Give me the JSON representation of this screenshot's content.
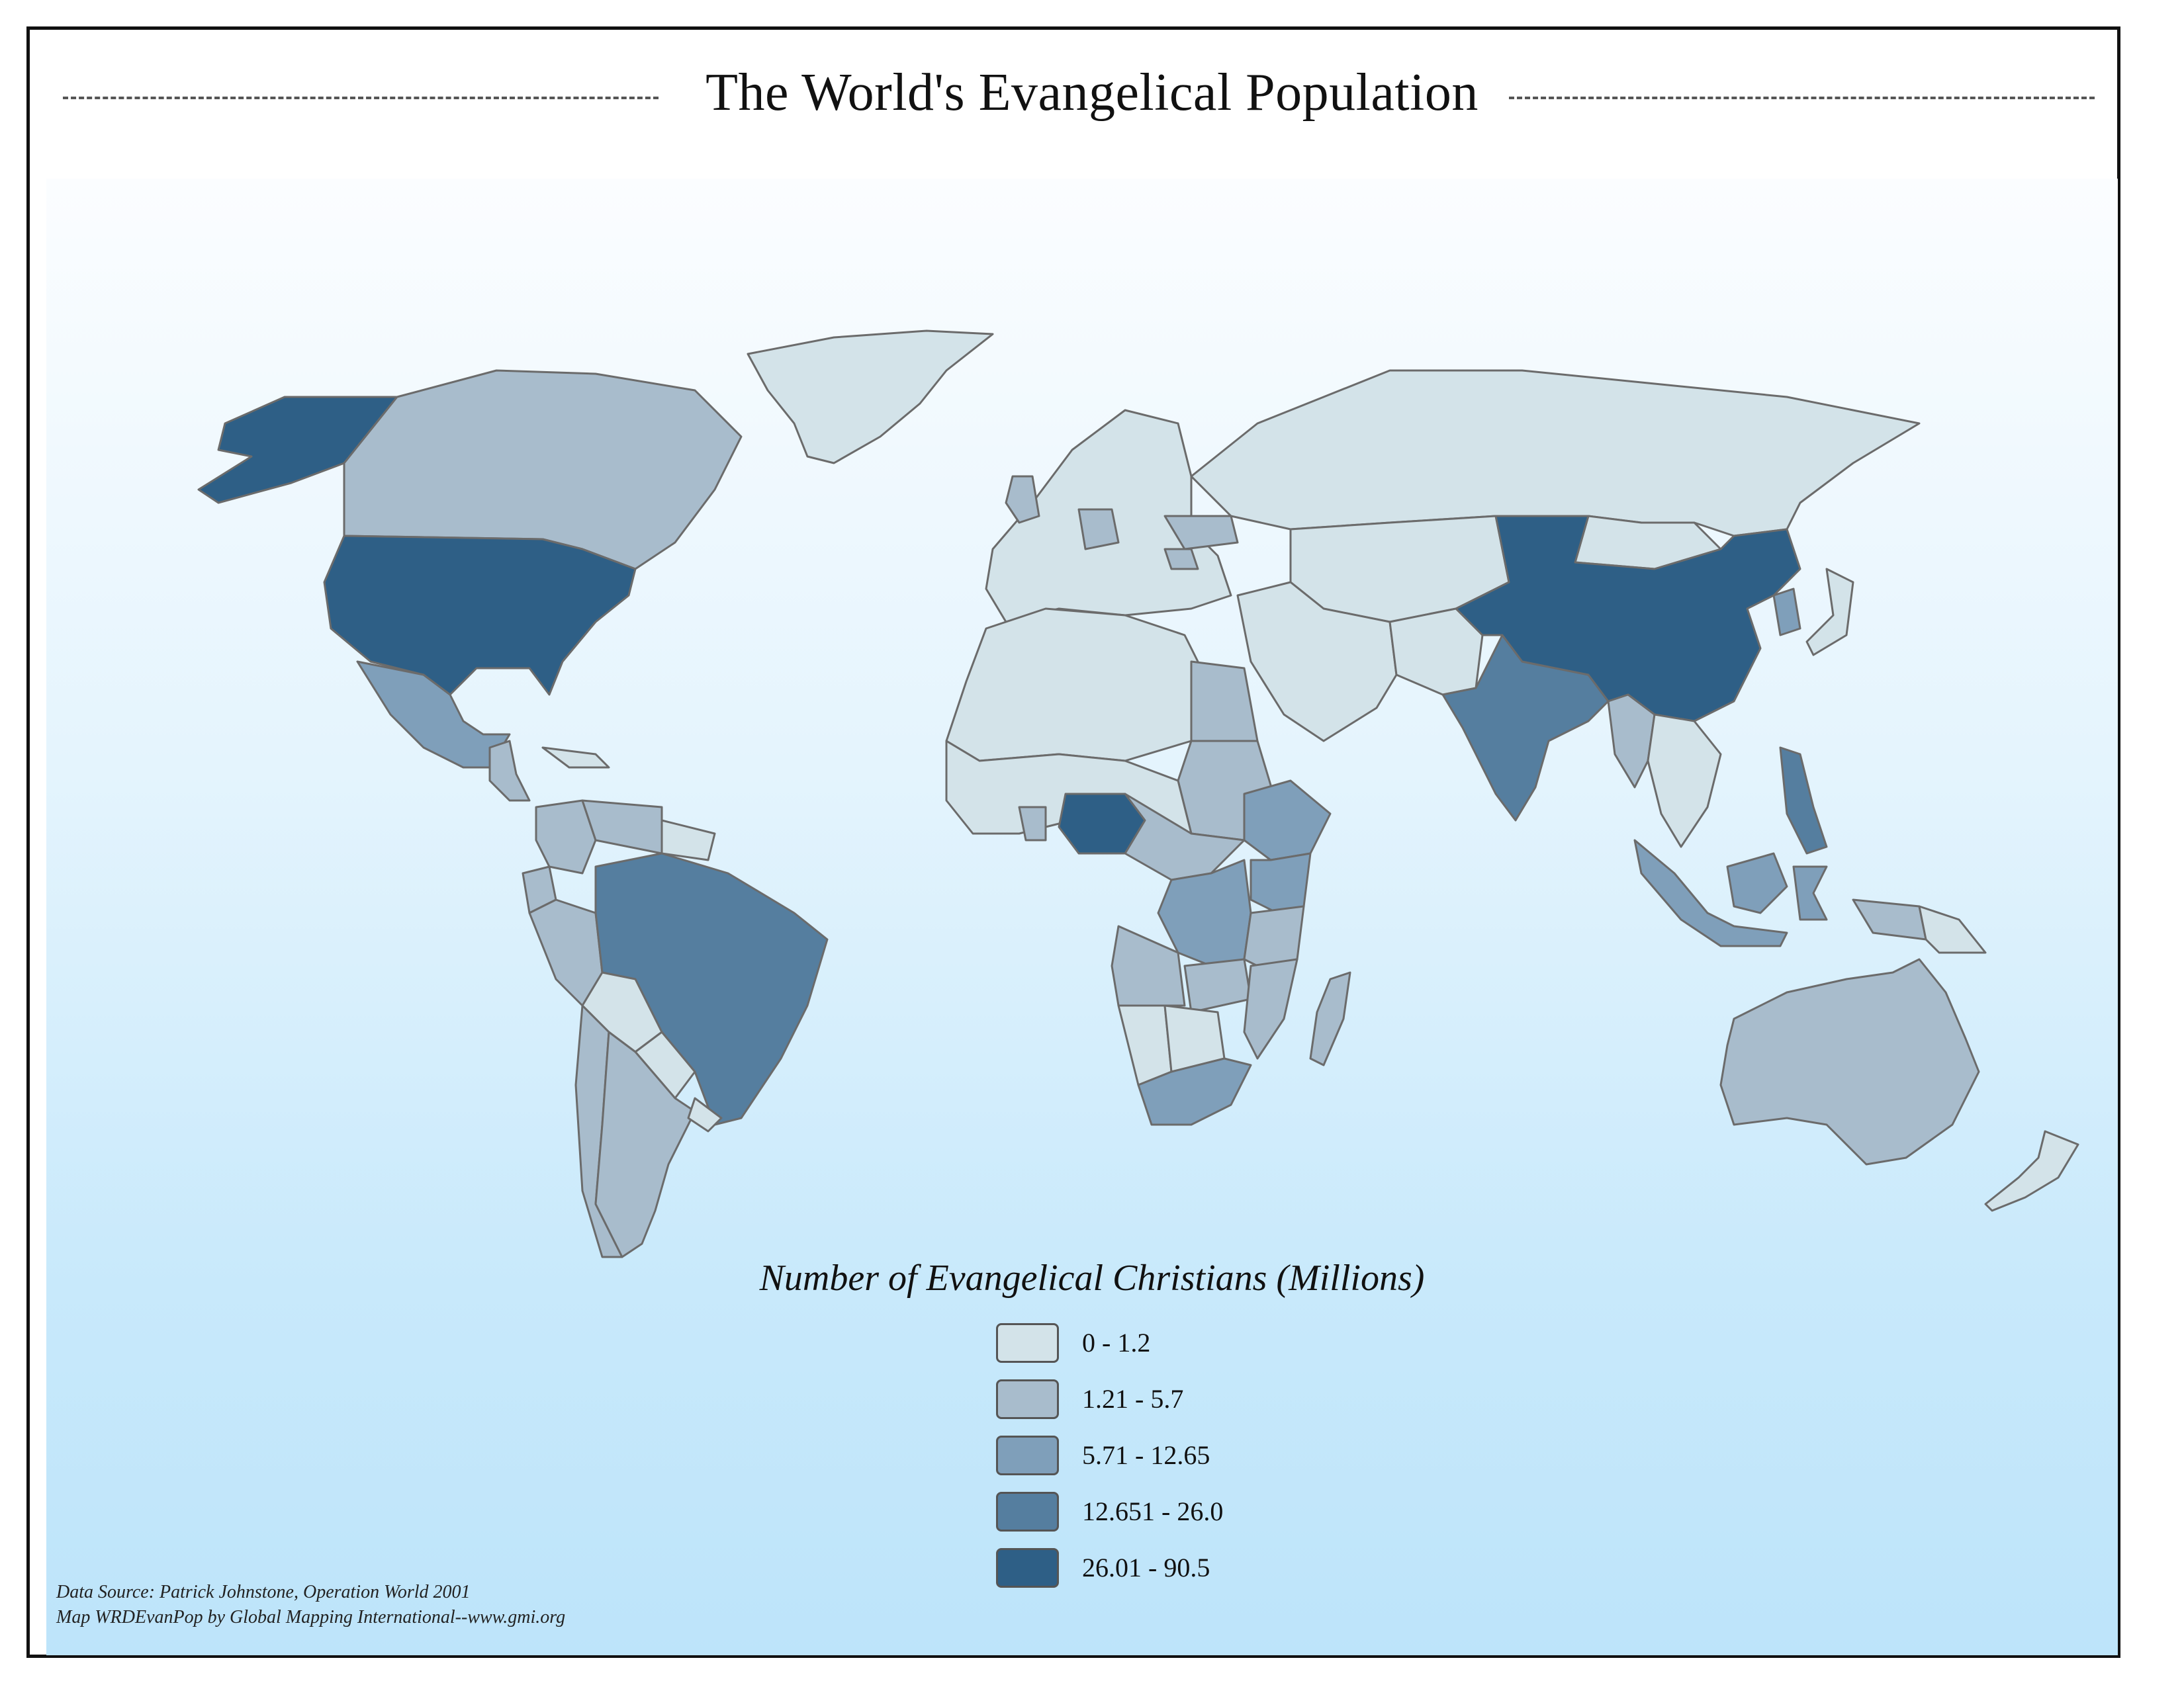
{
  "title": "The World's Evangelical Population",
  "legend": {
    "title": "Number of Evangelical Christians (Millions)",
    "classes": [
      {
        "label": "0 - 1.2",
        "color": "#d3e3e9"
      },
      {
        "label": "1.21 - 5.7",
        "color": "#a8bccc"
      },
      {
        "label": "5.71 - 12.65",
        "color": "#7f9fba"
      },
      {
        "label": "12.651 - 26.0",
        "color": "#557e9f"
      },
      {
        "label": "26.01 - 90.5",
        "color": "#2e5f86"
      }
    ]
  },
  "credits": {
    "line1": "Data Source:  Patrick Johnstone, Operation World 2001",
    "line2": "Map WRDEvanPop by Global Mapping International--www.gmi.org"
  },
  "colors": {
    "border": "#6b6b6b",
    "background_bottom": "#bde4fa",
    "background_top": "#fbfdff"
  },
  "regions": [
    {
      "name": "Greenland",
      "class": 0
    },
    {
      "name": "Alaska",
      "class": 4
    },
    {
      "name": "Canada",
      "class": 1
    },
    {
      "name": "United States",
      "class": 4
    },
    {
      "name": "Mexico",
      "class": 2
    },
    {
      "name": "Central America",
      "class": 1
    },
    {
      "name": "Caribbean",
      "class": 0
    },
    {
      "name": "Colombia",
      "class": 1
    },
    {
      "name": "Venezuela",
      "class": 1
    },
    {
      "name": "Guianas",
      "class": 0
    },
    {
      "name": "Peru",
      "class": 1
    },
    {
      "name": "Ecuador",
      "class": 1
    },
    {
      "name": "Brazil",
      "class": 3
    },
    {
      "name": "Bolivia",
      "class": 0
    },
    {
      "name": "Paraguay",
      "class": 0
    },
    {
      "name": "Argentina",
      "class": 1
    },
    {
      "name": "Chile",
      "class": 1
    },
    {
      "name": "Uruguay",
      "class": 0
    },
    {
      "name": "Europe",
      "class": 0
    },
    {
      "name": "United Kingdom",
      "class": 1
    },
    {
      "name": "Germany",
      "class": 1
    },
    {
      "name": "Ukraine",
      "class": 1
    },
    {
      "name": "Romania",
      "class": 1
    },
    {
      "name": "Russia",
      "class": 0
    },
    {
      "name": "Kazakhstan & Central Asia",
      "class": 0
    },
    {
      "name": "Middle East",
      "class": 0
    },
    {
      "name": "North Africa",
      "class": 0
    },
    {
      "name": "Egypt",
      "class": 1
    },
    {
      "name": "Sudan",
      "class": 1
    },
    {
      "name": "West Africa",
      "class": 0
    },
    {
      "name": "Ghana",
      "class": 1
    },
    {
      "name": "Nigeria",
      "class": 4
    },
    {
      "name": "Central Africa",
      "class": 1
    },
    {
      "name": "DR Congo",
      "class": 2
    },
    {
      "name": "Ethiopia",
      "class": 2
    },
    {
      "name": "Kenya",
      "class": 2
    },
    {
      "name": "Tanzania",
      "class": 1
    },
    {
      "name": "Angola",
      "class": 1
    },
    {
      "name": "Zambia",
      "class": 1
    },
    {
      "name": "Mozambique",
      "class": 1
    },
    {
      "name": "Namibia",
      "class": 0
    },
    {
      "name": "Botswana",
      "class": 0
    },
    {
      "name": "South Africa",
      "class": 2
    },
    {
      "name": "Madagascar",
      "class": 1
    },
    {
      "name": "India",
      "class": 3
    },
    {
      "name": "Pakistan & Afghanistan",
      "class": 0
    },
    {
      "name": "Myanmar",
      "class": 1
    },
    {
      "name": "Mongolia",
      "class": 0
    },
    {
      "name": "China",
      "class": 4
    },
    {
      "name": "Korea",
      "class": 2
    },
    {
      "name": "Japan",
      "class": 0
    },
    {
      "name": "Southeast Asia",
      "class": 0
    },
    {
      "name": "Philippines",
      "class": 3
    },
    {
      "name": "Sumatra & Java",
      "class": 2
    },
    {
      "name": "Borneo",
      "class": 2
    },
    {
      "name": "Sulawesi",
      "class": 2
    },
    {
      "name": "New Guinea",
      "class": 1
    },
    {
      "name": "Papua New Guinea",
      "class": 0
    },
    {
      "name": "Australia",
      "class": 1
    },
    {
      "name": "New Zealand",
      "class": 0
    }
  ]
}
